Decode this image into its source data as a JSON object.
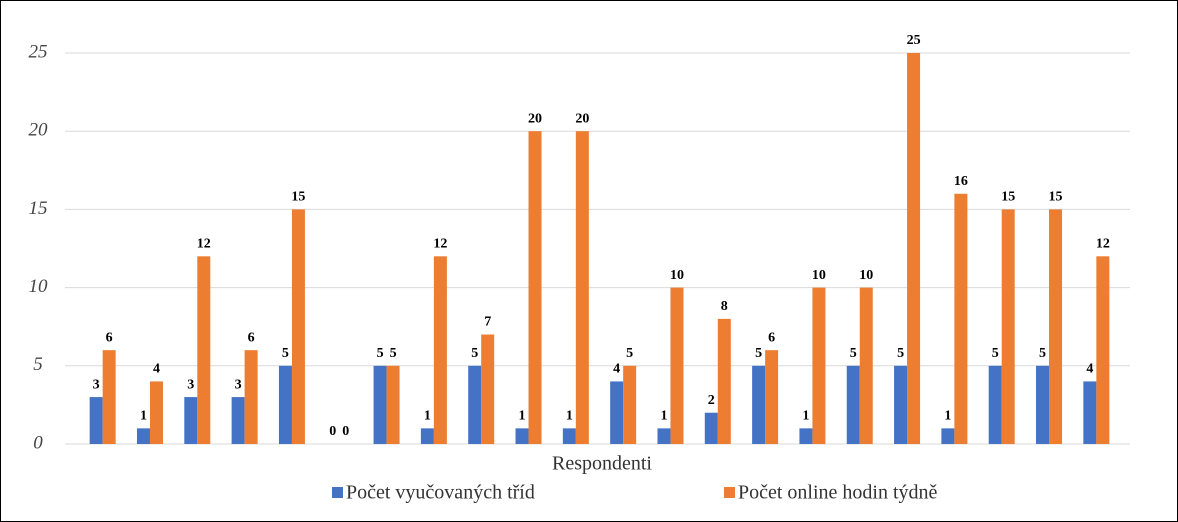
{
  "chart_data": {
    "type": "bar",
    "x_label": "Respondenti",
    "categories": [
      null,
      null,
      null,
      null,
      null,
      null,
      null,
      null,
      null,
      null,
      null,
      null,
      null,
      null,
      null,
      null,
      null,
      null,
      null,
      null,
      null,
      null
    ],
    "series": [
      {
        "name": "Počet vyučovaných tříd",
        "color": "#4472c4",
        "values": [
          3,
          1,
          3,
          3,
          5,
          0,
          5,
          1,
          5,
          1,
          1,
          4,
          1,
          2,
          5,
          1,
          5,
          5,
          1,
          5,
          5,
          4
        ]
      },
      {
        "name": "Počet online hodin týdně",
        "color": "#ed7d31",
        "values": [
          6,
          4,
          12,
          6,
          15,
          0,
          5,
          12,
          7,
          20,
          20,
          5,
          10,
          8,
          6,
          10,
          10,
          25,
          16,
          15,
          15,
          12
        ]
      }
    ],
    "ylim": [
      0,
      25
    ],
    "yticks": [
      0,
      5,
      10,
      15,
      20,
      25
    ],
    "grid": true,
    "legend": "bottom"
  }
}
